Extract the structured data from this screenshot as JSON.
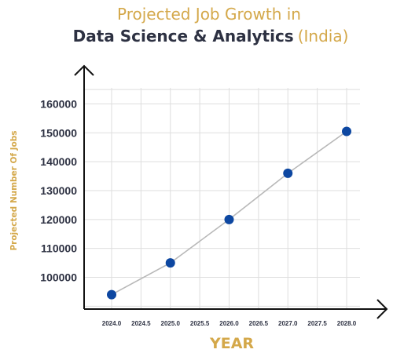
{
  "chart_data": {
    "type": "line",
    "title_line1": "Projected Job Growth in",
    "title_line2_main": "Data Science & Analytics",
    "title_line2_accent": "(India)",
    "xlabel": "YEAR",
    "ylabel": "Projected Number Of Jobs",
    "x": [
      2024.0,
      2025.0,
      2026.0,
      2027.0,
      2028.0
    ],
    "values": [
      94000,
      105000,
      120000,
      136000,
      150500
    ],
    "xlim": [
      2024.0,
      2028.0
    ],
    "ylim": [
      90000,
      165000
    ],
    "xticks": [
      "2024.0",
      "2024.5",
      "2025.0",
      "2025.5",
      "2026.0",
      "2026.5",
      "2027.0",
      "2027.5",
      "2028.0"
    ],
    "yticks": [
      "100000",
      "110000",
      "120000",
      "130000",
      "140000",
      "150000",
      "160000"
    ],
    "grid": true,
    "colors": {
      "points": "#0d47a1",
      "line": "#b8b8b8",
      "accent": "#d4a84a",
      "dark": "#2d3142"
    }
  }
}
